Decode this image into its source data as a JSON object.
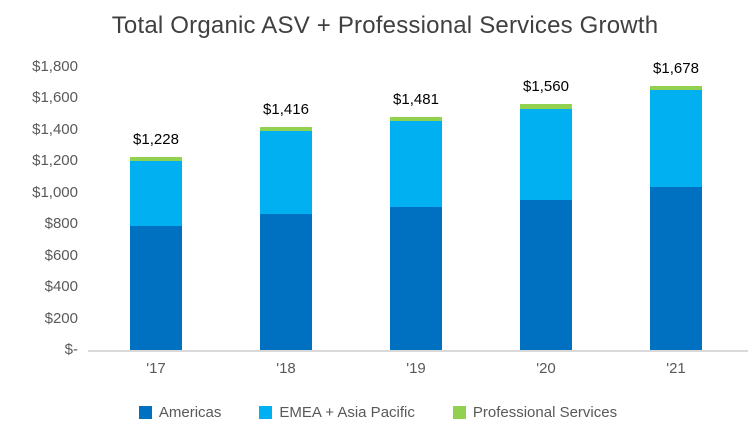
{
  "chart_data": {
    "type": "bar",
    "stacked": true,
    "title": "Total Organic ASV + Professional Services Growth",
    "categories": [
      "'17",
      "'18",
      "'19",
      "'20",
      "'21"
    ],
    "series": [
      {
        "name": "Americas",
        "color": "#0070C0",
        "values": [
          785,
          862,
          908,
          955,
          1032
        ]
      },
      {
        "name": "EMEA + Asia Pacific",
        "color": "#00B0F0",
        "values": [
          418,
          528,
          547,
          578,
          618
        ]
      },
      {
        "name": "Professional Services",
        "color": "#92D050",
        "values": [
          25,
          26,
          26,
          27,
          28
        ]
      }
    ],
    "totals": [
      "$1,228",
      "$1,416",
      "$1,481",
      "$1,560",
      "$1,678"
    ],
    "total_values": [
      1228,
      1416,
      1481,
      1560,
      1678
    ],
    "y_ticks": [
      "$1,800",
      "$1,600",
      "$1,400",
      "$1,200",
      "$1,000",
      "$800",
      "$600",
      "$400",
      "$200",
      "$-"
    ],
    "ylim": [
      0,
      1800
    ],
    "y_tick_step": 200,
    "grid": false,
    "legend_position": "bottom",
    "axis_line_color": "#D9D9D9",
    "title_color": "#404040",
    "axis_label_color": "#595959",
    "data_label_color": "#000000"
  }
}
